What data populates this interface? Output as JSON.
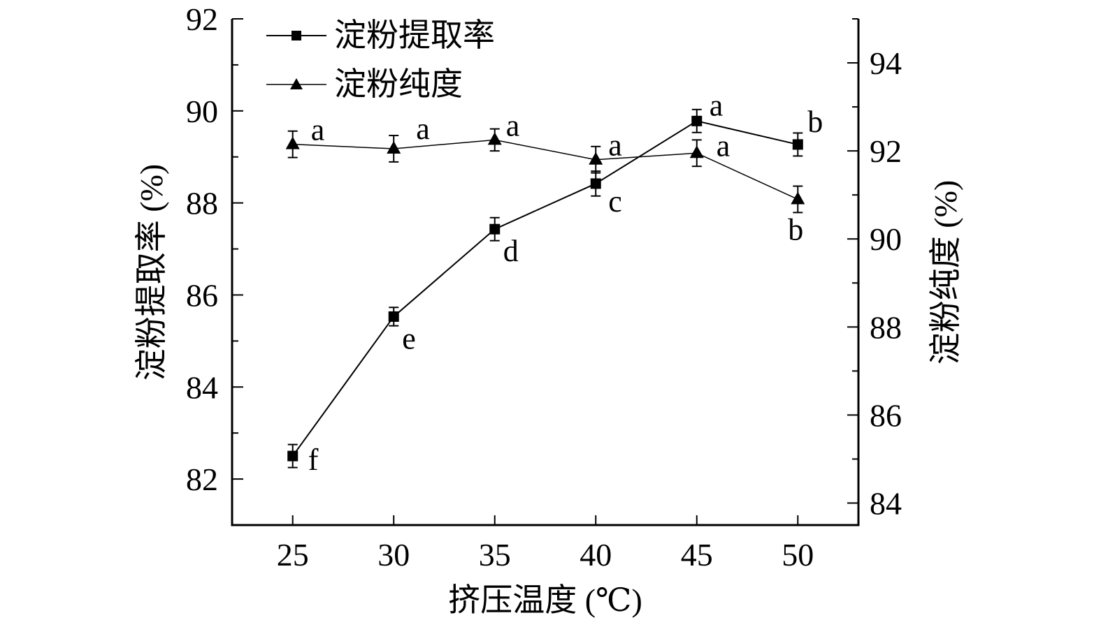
{
  "chart_data": {
    "type": "line",
    "x": [
      25,
      30,
      35,
      40,
      45,
      50
    ],
    "xlabel": "挤压温度 (℃)",
    "xlim": [
      22,
      53
    ],
    "xticks": [
      "25",
      "30",
      "35",
      "40",
      "45",
      "50"
    ],
    "ylabel_left": "淀粉提取率 (%)",
    "ylim_left": [
      81,
      92
    ],
    "yticks_left": [
      "82",
      "84",
      "86",
      "88",
      "90",
      "92"
    ],
    "ylabel_right": "淀粉纯度 (%)",
    "ylim_right": [
      83.5,
      95
    ],
    "yticks_right": [
      "84",
      "86",
      "88",
      "90",
      "92",
      "94"
    ],
    "legend_position": "top-left",
    "grid": false,
    "series": [
      {
        "name": "淀粉提取率",
        "axis": "left",
        "marker": "square",
        "values": [
          82.5,
          85.53,
          87.43,
          88.42,
          89.78,
          89.27
        ],
        "errors": [
          0.25,
          0.2,
          0.25,
          0.27,
          0.25,
          0.25
        ],
        "labels": [
          "f",
          "e",
          "d",
          "c",
          "a",
          "b"
        ]
      },
      {
        "name": "淀粉纯度",
        "axis": "right",
        "marker": "triangle",
        "values": [
          92.15,
          92.05,
          92.25,
          91.8,
          91.95,
          90.9
        ],
        "errors": [
          0.3,
          0.3,
          0.25,
          0.3,
          0.3,
          0.3
        ],
        "labels": [
          "a",
          "a",
          "a",
          "a",
          "a",
          "b"
        ]
      }
    ]
  }
}
